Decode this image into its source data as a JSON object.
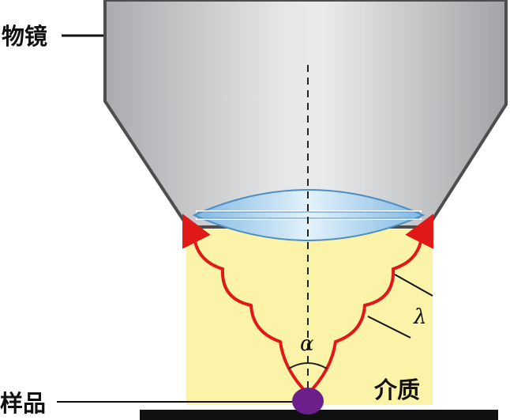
{
  "labels": {
    "objective": "物镜",
    "sample": "样品",
    "medium": "介质",
    "angle_symbol": "α",
    "wavelength_symbol": "λ"
  },
  "colors": {
    "objective_body": "#d6d7d9",
    "objective_outline": "#4d4d4d",
    "medium_fill": "#fbf3a7",
    "lens_fill": "#a9d3ee",
    "ray": "#e01818",
    "sample_dot": "#6b1f8a",
    "stage": "#111111"
  }
}
